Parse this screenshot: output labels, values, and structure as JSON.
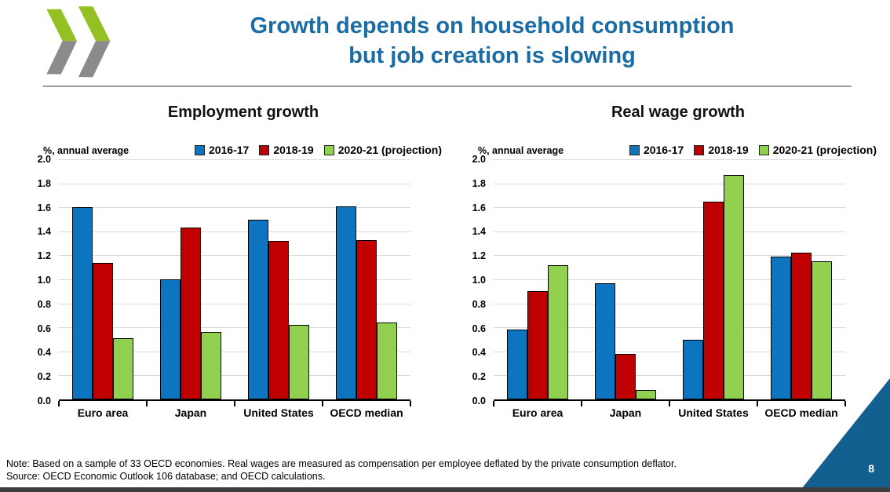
{
  "header": {
    "title_line1": "Growth depends on household consumption",
    "title_line2": "but job creation is slowing"
  },
  "chart_data": [
    {
      "type": "bar",
      "title": "Employment growth",
      "ylabel": "%, annual average",
      "xlabel": "",
      "ylim": [
        0.0,
        2.0
      ],
      "ytick_step": 0.2,
      "grid": true,
      "legend_position": "top-right",
      "categories": [
        "Euro area",
        "Japan",
        "United States",
        "OECD median"
      ],
      "series": [
        {
          "name": "2016-17",
          "color": "#0d75c0",
          "values": [
            1.6,
            1.0,
            1.5,
            1.61
          ]
        },
        {
          "name": "2018-19",
          "color": "#c00000",
          "values": [
            1.14,
            1.43,
            1.32,
            1.33
          ]
        },
        {
          "name": "2020-21 (projection)",
          "color": "#92d050",
          "values": [
            0.51,
            0.56,
            0.62,
            0.64
          ]
        }
      ]
    },
    {
      "type": "bar",
      "title": "Real wage growth",
      "ylabel": "%, annual average",
      "xlabel": "",
      "ylim": [
        0.0,
        2.0
      ],
      "ytick_step": 0.2,
      "grid": true,
      "legend_position": "top-right",
      "categories": [
        "Euro area",
        "Japan",
        "United States",
        "OECD median"
      ],
      "series": [
        {
          "name": "2016-17",
          "color": "#0d75c0",
          "values": [
            0.58,
            0.97,
            0.5,
            1.19
          ]
        },
        {
          "name": "2018-19",
          "color": "#c00000",
          "values": [
            0.9,
            0.38,
            1.65,
            1.22
          ]
        },
        {
          "name": "2020-21 (projection)",
          "color": "#92d050",
          "values": [
            1.12,
            0.08,
            1.87,
            1.15
          ]
        }
      ]
    }
  ],
  "footer": {
    "note": "Note: Based on a sample of 33 OECD economies. Real wages are measured as compensation per employee deflated by the private consumption deflator.",
    "source": "Source: OECD Economic Outlook 106 database; and OECD calculations.",
    "page_number": "8"
  },
  "logo": {
    "icon": "oecd-chevrons-logo",
    "green": "#94c023",
    "gray": "#8b8b8b"
  },
  "colors": {
    "title_blue": "#1b6ca5",
    "corner_triangle_blue": "#135f90",
    "bottom_bar_gray": "#3f3f3f",
    "gridline_gray": "#d9d9d9",
    "bar_border": "#000000"
  }
}
